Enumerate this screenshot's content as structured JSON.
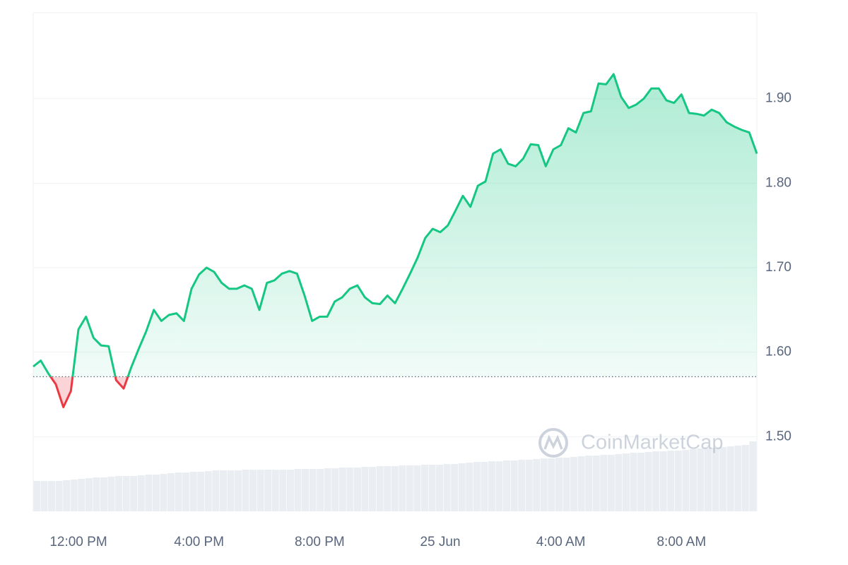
{
  "chart_data": {
    "type": "baseline-line",
    "x": [
      -1.5,
      -1.25,
      -1,
      -0.75,
      -0.5,
      -0.25,
      0,
      0.25,
      0.5,
      0.75,
      1,
      1.25,
      1.5,
      1.75,
      2,
      2.25,
      2.5,
      2.75,
      3,
      3.25,
      3.5,
      3.75,
      4,
      4.25,
      4.5,
      4.75,
      5,
      5.25,
      5.5,
      5.75,
      6,
      6.25,
      6.5,
      6.75,
      7,
      7.25,
      7.5,
      7.75,
      8,
      8.25,
      8.5,
      8.75,
      9,
      9.25,
      9.5,
      9.75,
      10,
      10.25,
      10.5,
      10.75,
      11,
      11.25,
      11.5,
      11.75,
      12,
      12.25,
      12.5,
      12.75,
      13,
      13.25,
      13.5,
      13.75,
      14,
      14.25,
      14.5,
      14.75,
      15,
      15.25,
      15.5,
      15.75,
      16,
      16.25,
      16.5,
      16.75,
      17,
      17.25,
      17.5,
      17.75,
      18,
      18.25,
      18.5,
      18.75,
      19,
      19.25,
      19.5,
      19.75,
      20,
      20.25,
      20.5,
      20.75,
      21,
      21.25,
      21.5,
      21.75,
      22,
      22.25,
      22.5
    ],
    "values": [
      1.583,
      1.59,
      1.575,
      1.562,
      1.535,
      1.554,
      1.627,
      1.642,
      1.617,
      1.608,
      1.607,
      1.567,
      1.557,
      1.582,
      1.604,
      1.625,
      1.65,
      1.637,
      1.644,
      1.646,
      1.637,
      1.675,
      1.692,
      1.7,
      1.695,
      1.682,
      1.675,
      1.675,
      1.679,
      1.675,
      1.65,
      1.682,
      1.685,
      1.693,
      1.696,
      1.693,
      1.667,
      1.637,
      1.642,
      1.642,
      1.66,
      1.665,
      1.675,
      1.679,
      1.665,
      1.658,
      1.657,
      1.667,
      1.658,
      1.675,
      1.693,
      1.712,
      1.735,
      1.746,
      1.742,
      1.75,
      1.767,
      1.785,
      1.772,
      1.797,
      1.802,
      1.835,
      1.84,
      1.823,
      1.82,
      1.829,
      1.846,
      1.845,
      1.82,
      1.84,
      1.845,
      1.865,
      1.86,
      1.883,
      1.885,
      1.918,
      1.917,
      1.929,
      1.902,
      1.889,
      1.893,
      1.9,
      1.912,
      1.912,
      1.898,
      1.895,
      1.905,
      1.883,
      1.882,
      1.88,
      1.887,
      1.883,
      1.872,
      1.867,
      1.863,
      1.86,
      1.835
    ],
    "volume": [
      43,
      43,
      43,
      43,
      44,
      45,
      46,
      47,
      48,
      48,
      49,
      50,
      50,
      50,
      51,
      52,
      52,
      53,
      54,
      55,
      55,
      56,
      56,
      57,
      58,
      58,
      58,
      58,
      59,
      59,
      59,
      59,
      59,
      59,
      59,
      60,
      60,
      60,
      60,
      61,
      61,
      62,
      62,
      62,
      63,
      63,
      64,
      64,
      64,
      65,
      65,
      65,
      66,
      66,
      66,
      67,
      67,
      68,
      69,
      70,
      70,
      71,
      71,
      72,
      72,
      73,
      73,
      74,
      75,
      75,
      76,
      76,
      77,
      78,
      79,
      79,
      80,
      80,
      81,
      82,
      83,
      83,
      84,
      85,
      85,
      86,
      86,
      87,
      88,
      89,
      90,
      90,
      91,
      92,
      93,
      94,
      99
    ],
    "volume_lim": [
      0,
      100
    ],
    "baseline": 1.571,
    "up_color": "#16c784",
    "down_color": "#ea3943",
    "volume_color": "#eaedf1",
    "xlim": [
      -1.5,
      22.5
    ],
    "xticks": [
      {
        "value": 0,
        "label": "12:00 PM"
      },
      {
        "value": 4,
        "label": "4:00 PM"
      },
      {
        "value": 8,
        "label": "8:00 PM"
      },
      {
        "value": 12,
        "label": "25 Jun"
      },
      {
        "value": 16,
        "label": "4:00 AM"
      },
      {
        "value": 20,
        "label": "8:00 AM"
      }
    ],
    "ylim": [
      1.4117,
      2.0017
    ],
    "yticks": [
      {
        "value": 1.5,
        "label": "1.50"
      },
      {
        "value": 1.6,
        "label": "1.60"
      },
      {
        "value": 1.7,
        "label": "1.70"
      },
      {
        "value": 1.8,
        "label": "1.80"
      },
      {
        "value": 1.9,
        "label": "1.90"
      }
    ],
    "grid": true,
    "watermark": "CoinMarketCap"
  }
}
